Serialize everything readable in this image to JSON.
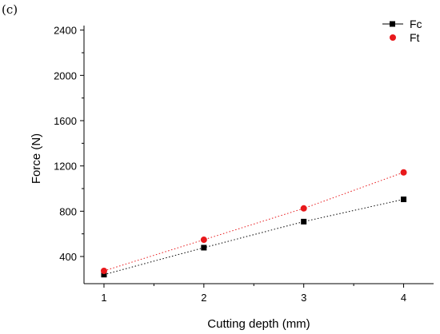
{
  "panel_label": "(c)",
  "chart_data": {
    "type": "line",
    "x": [
      1,
      2,
      3,
      4
    ],
    "xlabel": "Cutting depth (mm)",
    "ylabel": "Force (N)",
    "xlim": [
      0.8,
      4.3
    ],
    "ylim": [
      160,
      2440
    ],
    "xticks": [
      1,
      2,
      3,
      4
    ],
    "yticks": [
      400,
      800,
      1200,
      1600,
      2000,
      2400
    ],
    "grid": false,
    "legend_position": "top-right",
    "series": [
      {
        "name": "Fc",
        "values": [
          240,
          478,
          708,
          905
        ],
        "color": "#000000",
        "marker": "square",
        "line_style": "dotted"
      },
      {
        "name": "Ft",
        "values": [
          273,
          548,
          825,
          1143
        ],
        "color": "#e8191c",
        "marker": "circle",
        "line_style": "dotted"
      }
    ]
  }
}
